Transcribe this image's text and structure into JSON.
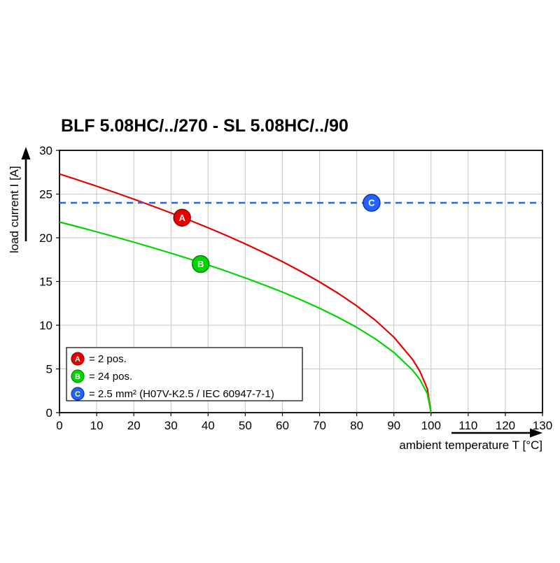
{
  "title": "BLF 5.08HC/../270 - SL 5.08HC/../90",
  "chart_data": {
    "type": "line",
    "title": "BLF 5.08HC/../270 - SL 5.08HC/../90",
    "xlabel": "ambient temperature T [°C]",
    "ylabel": "load current I [A]",
    "xlim": [
      0,
      130
    ],
    "ylim": [
      0,
      30
    ],
    "xticks": [
      0,
      10,
      20,
      30,
      40,
      50,
      60,
      70,
      80,
      90,
      100,
      110,
      120,
      130
    ],
    "yticks": [
      0,
      5,
      10,
      15,
      20,
      25,
      30
    ],
    "grid": true,
    "legend_position": "bottom-left",
    "x": [
      0,
      5,
      10,
      15,
      20,
      25,
      30,
      35,
      40,
      45,
      50,
      55,
      60,
      65,
      70,
      75,
      80,
      85,
      90,
      95,
      97,
      99,
      100
    ],
    "series": [
      {
        "name": "A",
        "legend_label": "= 2 pos.",
        "color": "#e60000",
        "border_color": "#990000",
        "line_style": "solid",
        "values": [
          27.3,
          26.61,
          25.9,
          25.17,
          24.42,
          23.64,
          22.84,
          22.01,
          21.15,
          20.25,
          19.3,
          18.31,
          17.27,
          16.15,
          14.95,
          13.65,
          12.21,
          10.57,
          8.63,
          6.1,
          4.73,
          2.73,
          0
        ],
        "marker": {
          "x": 33,
          "y": 22.3
        }
      },
      {
        "name": "B",
        "legend_label": "= 24 pos.",
        "color": "#00d500",
        "border_color": "#008800",
        "line_style": "solid",
        "values": [
          21.8,
          21.25,
          20.68,
          20.1,
          19.5,
          18.88,
          18.24,
          17.58,
          16.89,
          16.17,
          15.41,
          14.62,
          13.79,
          12.9,
          11.94,
          10.9,
          9.75,
          8.44,
          6.89,
          4.87,
          3.78,
          2.18,
          0
        ],
        "marker": {
          "x": 38,
          "y": 17
        }
      },
      {
        "name": "C",
        "legend_label": "= 2.5 mm² (H07V-K2.5 / IEC 60947-7-1)",
        "color": "#2563ff",
        "border_color": "#0033bb",
        "line_style": "dashed",
        "y_const": 24,
        "marker": {
          "x": 84,
          "y": 24
        }
      }
    ]
  }
}
